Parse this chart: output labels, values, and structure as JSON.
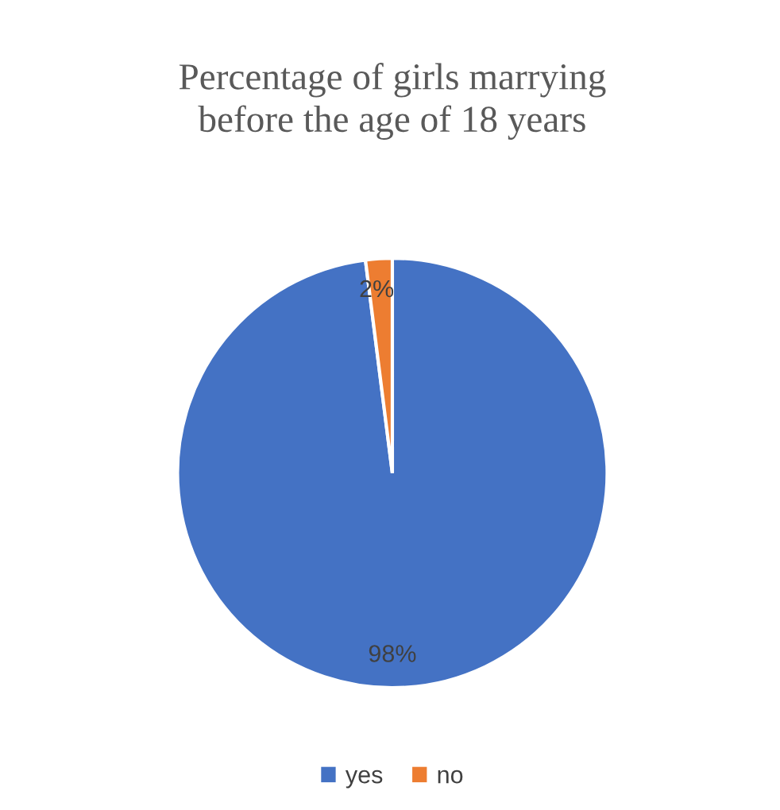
{
  "chart_data": {
    "type": "pie",
    "title": "Percentage of girls marrying\nbefore the age of 18 years",
    "categories": [
      "yes",
      "no"
    ],
    "values": [
      98,
      2
    ],
    "colors": [
      "#4472c4",
      "#ed7d31"
    ],
    "value_labels": [
      "98%",
      "2%"
    ],
    "legend": "bottom"
  }
}
